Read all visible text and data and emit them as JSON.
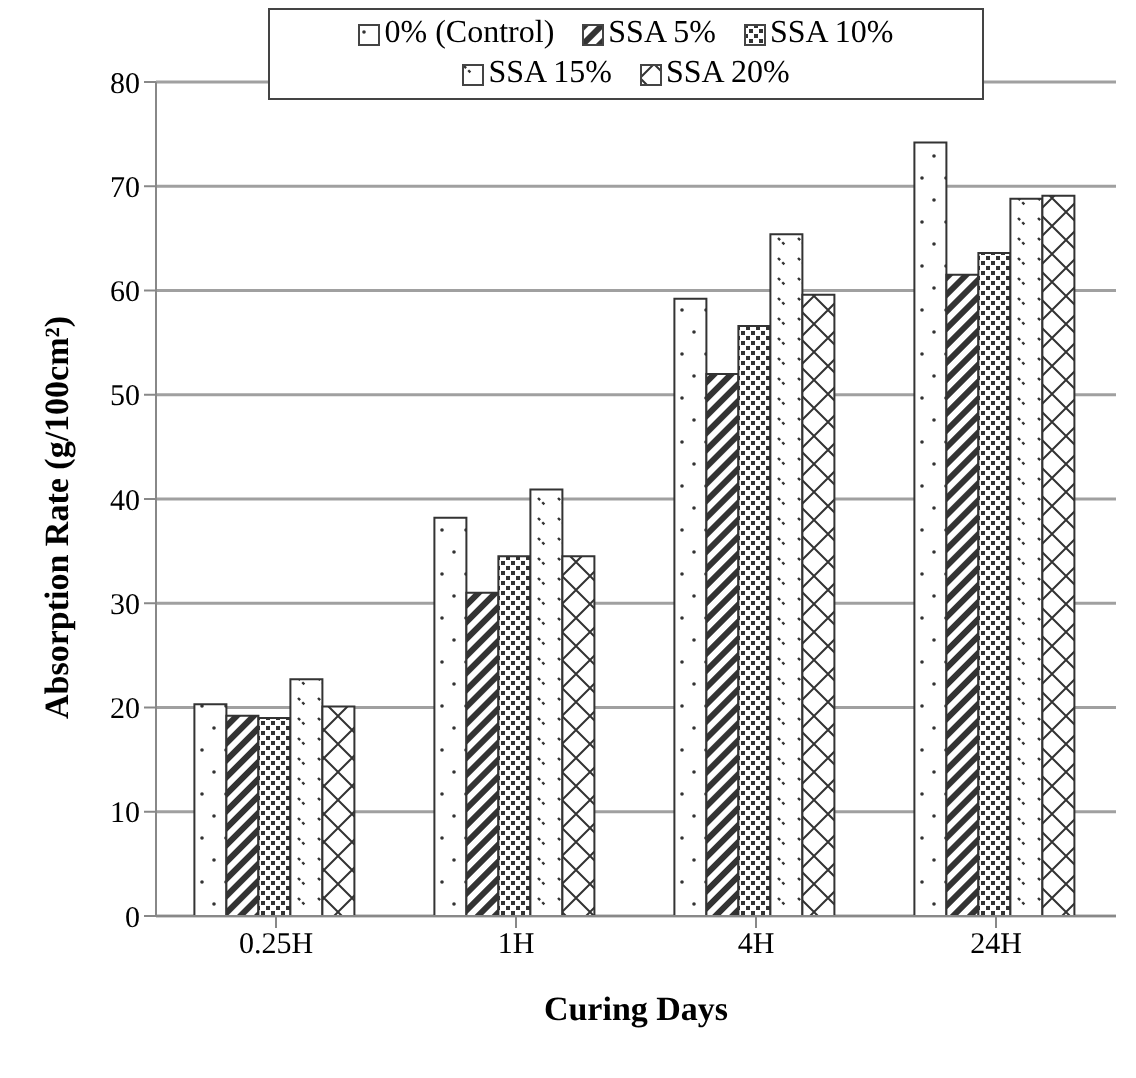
{
  "chart_data": {
    "type": "bar",
    "xlabel": "Curing Days",
    "ylabel": "Absorption Rate (g/100cm²)",
    "categories": [
      "0.25H",
      "1H",
      "4H",
      "24H"
    ],
    "series": [
      {
        "name": "0% (Control)",
        "color": "#333333",
        "values": [
          20.3,
          38.2,
          59.2,
          74.2
        ]
      },
      {
        "name": "SSA 5%",
        "color": "#333333",
        "values": [
          19.2,
          31.0,
          52.0,
          61.5
        ]
      },
      {
        "name": "SSA 10%",
        "color": "#333333",
        "values": [
          19.0,
          34.5,
          56.6,
          63.6
        ]
      },
      {
        "name": "SSA 15%",
        "color": "#333333",
        "values": [
          22.7,
          40.9,
          65.4,
          68.8
        ]
      },
      {
        "name": "SSA 20%",
        "color": "#333333",
        "values": [
          20.1,
          34.5,
          59.6,
          69.1
        ]
      }
    ],
    "ylim": [
      0,
      80
    ],
    "yticks": [
      0,
      10,
      20,
      30,
      40,
      50,
      60,
      70,
      80
    ],
    "grid": "y",
    "legend": "top"
  }
}
